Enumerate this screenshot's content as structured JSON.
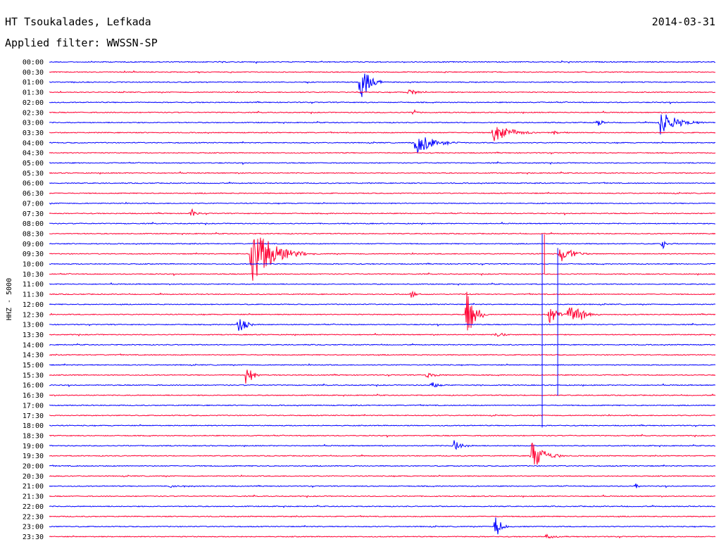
{
  "chart_data": {
    "type": "line",
    "title": "HT Tsoukalades, Lefkada",
    "date": "2014-03-31",
    "filter_label": "Applied filter: WWSSN-SP",
    "ylabel": "HHZ - 5000",
    "grid": false,
    "series_colors": [
      "#0000ff",
      "#ff0033"
    ],
    "row_labels": [
      "00:00",
      "00:30",
      "01:00",
      "01:30",
      "02:00",
      "02:30",
      "03:00",
      "03:30",
      "04:00",
      "04:30",
      "05:00",
      "05:30",
      "06:00",
      "06:30",
      "07:00",
      "07:30",
      "08:00",
      "08:30",
      "09:00",
      "09:30",
      "10:00",
      "10:30",
      "11:00",
      "11:30",
      "12:00",
      "12:30",
      "13:00",
      "13:30",
      "14:00",
      "14:30",
      "15:00",
      "15:30",
      "16:00",
      "16:30",
      "17:00",
      "17:30",
      "18:00",
      "18:30",
      "19:00",
      "19:30",
      "20:00",
      "20:30",
      "21:00",
      "21:30",
      "22:00",
      "22:30",
      "23:00",
      "23:30"
    ],
    "events": [
      {
        "row": 2,
        "minute": 14.0,
        "amp": 32,
        "dur": 1.0
      },
      {
        "row": 3,
        "minute": 16.2,
        "amp": 5,
        "dur": 1.0
      },
      {
        "row": 5,
        "minute": 16.4,
        "amp": 6,
        "dur": 0.3
      },
      {
        "row": 6,
        "minute": 24.7,
        "amp": 7,
        "dur": 0.6
      },
      {
        "row": 6,
        "minute": 27.5,
        "amp": 18,
        "dur": 2.0
      },
      {
        "row": 7,
        "minute": 22.7,
        "amp": 3,
        "dur": 0.8
      },
      {
        "row": 7,
        "minute": 20.0,
        "amp": 16,
        "dur": 2.0
      },
      {
        "row": 8,
        "minute": 16.5,
        "amp": 18,
        "dur": 2.0
      },
      {
        "row": 15,
        "minute": 6.4,
        "amp": 7,
        "dur": 0.5
      },
      {
        "row": 19,
        "minute": 9.1,
        "amp": 45,
        "dur": 2.5
      },
      {
        "row": 19,
        "minute": 23.0,
        "amp": 14,
        "dur": 1.5
      },
      {
        "row": 18,
        "minute": 27.6,
        "amp": 8,
        "dur": 0.6
      },
      {
        "row": 23,
        "minute": 16.3,
        "amp": 6,
        "dur": 0.5
      },
      {
        "row": 25,
        "minute": 18.8,
        "amp": 35,
        "dur": 1.0
      },
      {
        "row": 25,
        "minute": 22.5,
        "amp": 18,
        "dur": 0.8
      },
      {
        "row": 25,
        "minute": 23.4,
        "amp": 12,
        "dur": 1.5
      },
      {
        "row": 25,
        "minute": 23.8,
        "amp": 10,
        "dur": 0.8
      },
      {
        "row": 27,
        "minute": 20.1,
        "amp": 5,
        "dur": 1.0
      },
      {
        "row": 26,
        "minute": 8.5,
        "amp": 16,
        "dur": 0.8
      },
      {
        "row": 31,
        "minute": 8.9,
        "amp": 24,
        "dur": 0.6
      },
      {
        "row": 31,
        "minute": 17.0,
        "amp": 5,
        "dur": 1.0
      },
      {
        "row": 32,
        "minute": 17.2,
        "amp": 6,
        "dur": 0.8
      },
      {
        "row": 38,
        "minute": 18.2,
        "amp": 9,
        "dur": 1.0
      },
      {
        "row": 39,
        "minute": 21.7,
        "amp": 24,
        "dur": 1.5
      },
      {
        "row": 42,
        "minute": 5.4,
        "amp": 3,
        "dur": 1.3
      },
      {
        "row": 42,
        "minute": 26.4,
        "amp": 5,
        "dur": 0.4
      },
      {
        "row": 46,
        "minute": 20.1,
        "amp": 18,
        "dur": 0.6
      },
      {
        "row": 47,
        "minute": 22.4,
        "amp": 4,
        "dur": 0.8
      }
    ],
    "spikes": [
      {
        "row": 24,
        "minute": 22.2,
        "up": 100,
        "down": 175
      },
      {
        "row": 24,
        "minute": 22.9,
        "up": 80,
        "down": 130
      },
      {
        "row": 19,
        "minute": 22.3,
        "up": 28,
        "down": 28
      }
    ]
  }
}
